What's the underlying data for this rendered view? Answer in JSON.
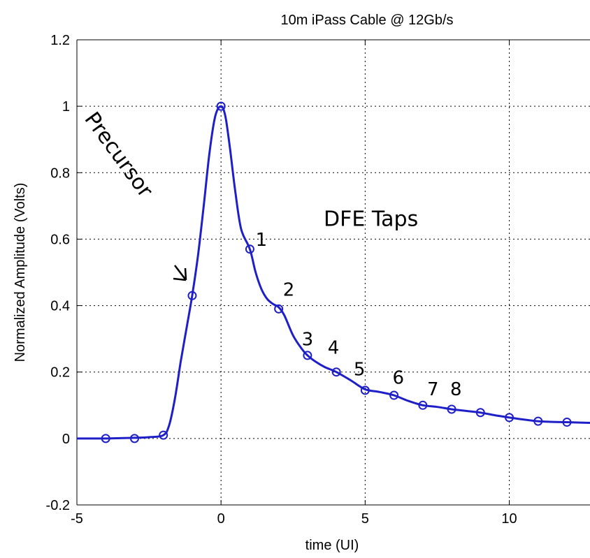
{
  "chart_data": {
    "type": "line",
    "title": "10m iPass Cable @ 12Gb/s",
    "xlabel": "time (UI)",
    "ylabel": "Normalized Amplitude (Volts)",
    "xlim": [
      -5,
      12.8
    ],
    "ylim": [
      -0.2,
      1.2
    ],
    "xticks": [
      -5,
      0,
      5,
      10
    ],
    "yticks": [
      -0.2,
      0,
      0.2,
      0.4,
      0.6,
      0.8,
      1,
      1.2
    ],
    "grid": true,
    "line_color": "#1f1fc8",
    "curve": {
      "x": [
        -5,
        -4.5,
        -4,
        -3.5,
        -3,
        -2.5,
        -2,
        -1.8,
        -1.6,
        -1.4,
        -1.2,
        -1,
        -0.8,
        -0.6,
        -0.4,
        -0.2,
        0,
        0.15,
        0.3,
        0.5,
        0.7,
        1,
        1.2,
        1.4,
        1.6,
        1.8,
        2,
        2.2,
        2.5,
        2.8,
        3,
        3.3,
        3.6,
        4,
        4.5,
        5,
        5.5,
        6,
        6.5,
        7,
        7.5,
        8,
        8.5,
        9,
        9.5,
        10,
        10.5,
        11,
        11.5,
        12,
        12.8
      ],
      "y": [
        0,
        0,
        0,
        0.001,
        0.002,
        0.004,
        0.01,
        0.04,
        0.12,
        0.23,
        0.33,
        0.43,
        0.55,
        0.7,
        0.86,
        0.97,
        1.0,
        0.97,
        0.88,
        0.74,
        0.63,
        0.57,
        0.5,
        0.45,
        0.42,
        0.405,
        0.395,
        0.37,
        0.31,
        0.27,
        0.25,
        0.23,
        0.215,
        0.2,
        0.175,
        0.148,
        0.14,
        0.13,
        0.113,
        0.1,
        0.095,
        0.088,
        0.083,
        0.078,
        0.07,
        0.063,
        0.057,
        0.052,
        0.05,
        0.049,
        0.047
      ]
    },
    "samples": {
      "x": [
        -4,
        -3,
        -2,
        -1,
        0,
        1,
        2,
        3,
        4,
        5,
        6,
        7,
        8,
        9,
        10,
        11,
        12
      ],
      "y": [
        0,
        0,
        0.01,
        0.43,
        1.0,
        0.57,
        0.39,
        0.25,
        0.2,
        0.145,
        0.13,
        0.1,
        0.088,
        0.078,
        0.063,
        0.052,
        0.049
      ]
    },
    "annotations": {
      "precursor_label": "Precursor",
      "taps_label": "DFE Taps",
      "tap_numbers": [
        {
          "text": "1",
          "x": 1.4,
          "y": 0.58
        },
        {
          "text": "2",
          "x": 2.35,
          "y": 0.43
        },
        {
          "text": "3",
          "x": 3.0,
          "y": 0.28
        },
        {
          "text": "4",
          "x": 3.9,
          "y": 0.255
        },
        {
          "text": "5",
          "x": 4.8,
          "y": 0.19
        },
        {
          "text": "6",
          "x": 6.15,
          "y": 0.165
        },
        {
          "text": "7",
          "x": 7.35,
          "y": 0.13
        },
        {
          "text": "8",
          "x": 8.15,
          "y": 0.13
        }
      ]
    }
  }
}
